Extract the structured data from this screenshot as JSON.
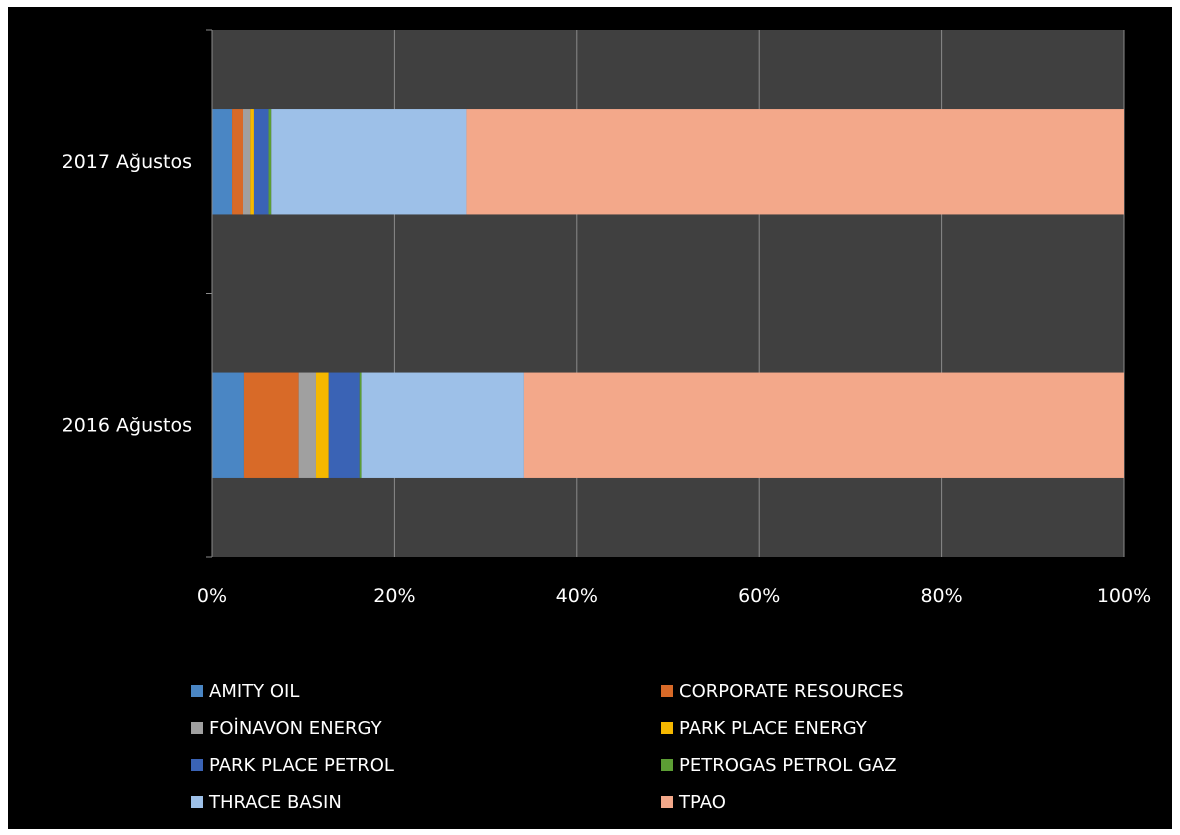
{
  "chart_data": {
    "type": "bar",
    "orientation": "horizontal",
    "stacking": "percent",
    "categories": [
      "2017 Ağustos",
      "2016 Ağustos"
    ],
    "series": [
      {
        "name": "AMITY OIL",
        "color": "#4a86c4",
        "values": [
          2.2,
          3.5
        ]
      },
      {
        "name": "CORPORATE RESOURCES",
        "color": "#d86a28",
        "values": [
          1.2,
          6.0
        ]
      },
      {
        "name": "FOİNAVON ENERGY",
        "color": "#a0a0a0",
        "values": [
          0.8,
          1.9
        ]
      },
      {
        "name": "PARK PLACE ENERGY",
        "color": "#f5b800",
        "values": [
          0.4,
          1.4
        ]
      },
      {
        "name": "PARK PLACE PETROL",
        "color": "#3a63b5",
        "values": [
          1.6,
          3.4
        ]
      },
      {
        "name": "PETROGAS PETROL GAZ",
        "color": "#5c9e34",
        "values": [
          0.3,
          0.2
        ]
      },
      {
        "name": "THRACE BASIN",
        "color": "#9dc0e8",
        "values": [
          21.4,
          17.8
        ]
      },
      {
        "name": "TPAO",
        "color": "#f3a88a",
        "values": [
          72.1,
          65.8
        ]
      }
    ],
    "xlim": [
      0,
      100
    ],
    "xticks": [
      "0%",
      "20%",
      "40%",
      "60%",
      "80%",
      "100%"
    ],
    "grid": true,
    "legend_position": "bottom",
    "plot_background": "#404040",
    "background": "#000000"
  }
}
